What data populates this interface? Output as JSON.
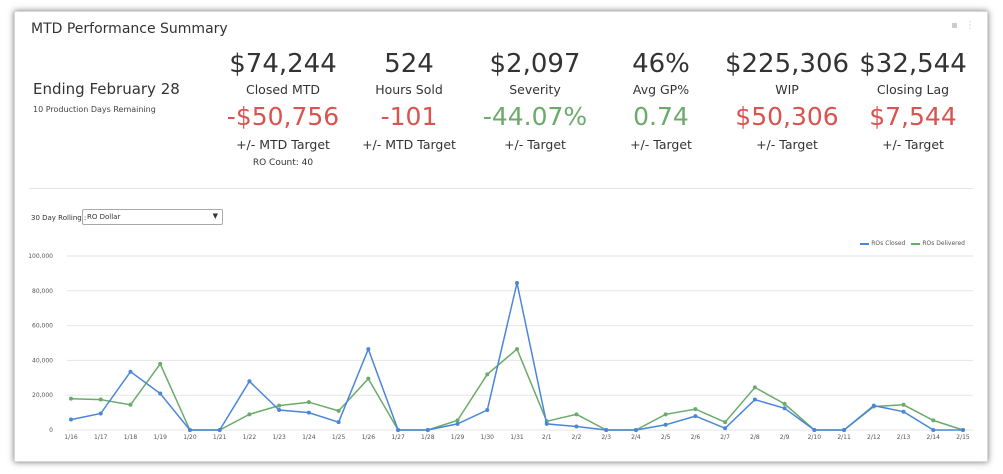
{
  "card": {
    "title": "MTD Performance Summary"
  },
  "summary": {
    "ending": "Ending February 28",
    "days_remaining": "10 Production Days Remaining"
  },
  "kpis": [
    {
      "value": "$74,244",
      "label": "Closed MTD",
      "delta": "-$50,756",
      "delta_color": "red",
      "target": "+/- MTD Target",
      "extra": "RO Count: 40"
    },
    {
      "value": "524",
      "label": "Hours Sold",
      "delta": "-101",
      "delta_color": "red",
      "target": "+/- MTD Target",
      "extra": ""
    },
    {
      "value": "$2,097",
      "label": "Severity",
      "delta": "-44.07%",
      "delta_color": "green",
      "target": "+/- Target",
      "extra": ""
    },
    {
      "value": "46%",
      "label": "Avg GP%",
      "delta": "0.74",
      "delta_color": "green",
      "target": "+/- Target",
      "extra": ""
    },
    {
      "value": "$225,306",
      "label": "WIP",
      "delta": "$50,306",
      "delta_color": "red",
      "target": "+/- Target",
      "extra": ""
    },
    {
      "value": "$32,544",
      "label": "Closing Lag",
      "delta": "$7,544",
      "delta_color": "red",
      "target": "+/- Target",
      "extra": ""
    }
  ],
  "controls": {
    "rolling_label": "30 Day Rolling :",
    "dropdown_value": "RO Dollar"
  },
  "colors": {
    "red": "#d9534f",
    "green": "#6aab6a",
    "series_closed": "#4a86d9",
    "series_delivered": "#6aab6a"
  },
  "chart_data": {
    "type": "line",
    "ylim": [
      0,
      100000
    ],
    "yticks": [
      "0",
      "20,000",
      "40,000",
      "60,000",
      "80,000",
      "100,000"
    ],
    "x": [
      "1/16",
      "1/17",
      "1/18",
      "1/19",
      "1/20",
      "1/21",
      "1/22",
      "1/23",
      "1/24",
      "1/25",
      "1/26",
      "1/27",
      "1/28",
      "1/29",
      "1/30",
      "1/31",
      "2/1",
      "2/2",
      "2/3",
      "2/4",
      "2/5",
      "2/6",
      "2/7",
      "2/8",
      "2/9",
      "2/10",
      "2/11",
      "2/12",
      "2/13",
      "2/14",
      "2/15"
    ],
    "series": [
      {
        "name": "ROs Closed",
        "color": "#4a86d9",
        "values": [
          6000,
          9500,
          33500,
          21000,
          0,
          0,
          28000,
          11500,
          10000,
          4500,
          46500,
          0,
          0,
          3500,
          11500,
          84500,
          3500,
          2000,
          0,
          0,
          3000,
          8000,
          1000,
          17500,
          12500,
          0,
          0,
          14000,
          10500,
          0,
          0
        ]
      },
      {
        "name": "ROs Delivered",
        "color": "#6aab6a",
        "values": [
          18000,
          17500,
          14500,
          38000,
          0,
          0,
          9000,
          14000,
          16000,
          11000,
          29500,
          0,
          0,
          5500,
          32000,
          46500,
          5000,
          9000,
          0,
          0,
          9000,
          12000,
          4500,
          24500,
          15000,
          0,
          0,
          13500,
          14500,
          5500,
          0
        ]
      }
    ],
    "grid": true,
    "legend": "top-right"
  }
}
